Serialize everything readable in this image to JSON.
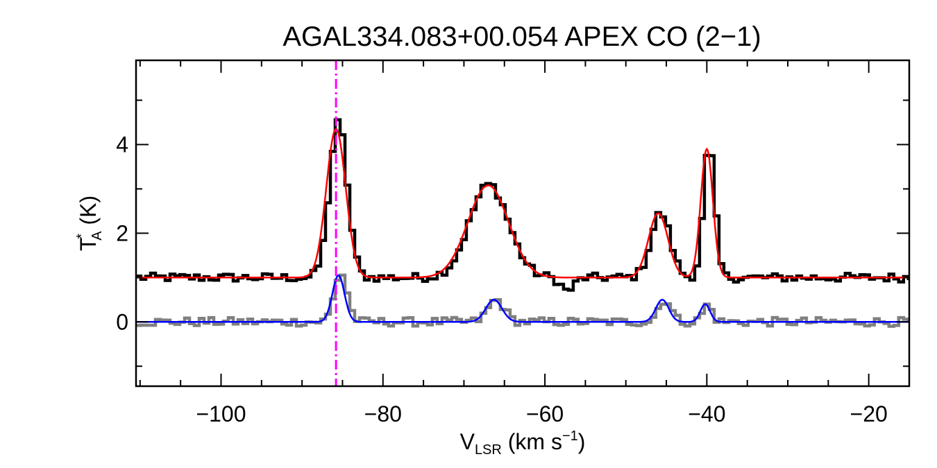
{
  "chart_data": {
    "type": "line",
    "title": "AGAL334.083+00.054  APEX CO (2−1)",
    "xlabel": {
      "main": "V",
      "sub": "LSR",
      "unit_before": " (km s",
      "sup": "−1",
      "unit_after": ")"
    },
    "ylabel": {
      "main": "T",
      "sup": "*",
      "sub": "A",
      "unit": " (K)"
    },
    "xlim": [
      -110.5,
      -15
    ],
    "ylim": [
      -1.45,
      5.9
    ],
    "x_major_ticks": [
      -100,
      -80,
      -60,
      -40,
      -20
    ],
    "x_tick_labels": [
      "−100",
      "−80",
      "−60",
      "−40",
      "−20"
    ],
    "y_major_ticks": [
      0,
      2,
      4
    ],
    "y_tick_labels": [
      "0",
      "2",
      "4"
    ],
    "x_minor_step": 5,
    "y_minor_step": 1,
    "reference_line": {
      "x": -85.8,
      "color": "#ff00ff",
      "style": "dash-dot"
    },
    "series": [
      {
        "role": "observed spectrum (offset +1 K)",
        "color": "#000000",
        "style": "histogram",
        "baseline": 1.0,
        "noise": 0.1,
        "x_start": -110.5,
        "x_end": -15,
        "step": 0.6,
        "components": [
          {
            "center": -85.8,
            "amp": 3.5,
            "sigma": 1.1
          },
          {
            "center": -67.2,
            "amp": 2.1,
            "sigma": 2.4
          },
          {
            "center": -46.0,
            "amp": 1.45,
            "sigma": 1.2
          },
          {
            "center": -40.0,
            "amp": 2.95,
            "sigma": 0.7
          }
        ],
        "dips": [
          {
            "center": -57.5,
            "amp": -0.3,
            "sigma": 0.8
          }
        ]
      },
      {
        "role": "fit to observed spectrum",
        "color": "#ff0000",
        "style": "line",
        "baseline": 1.0,
        "components": [
          {
            "center": -85.8,
            "amp": 3.35,
            "sigma": 1.2
          },
          {
            "center": -67.0,
            "amp": 2.08,
            "sigma": 2.5
          },
          {
            "center": -46.0,
            "amp": 1.45,
            "sigma": 1.2
          },
          {
            "center": -40.0,
            "amp": 2.9,
            "sigma": 0.75
          }
        ]
      },
      {
        "role": "secondary spectrum",
        "color": "#808080",
        "style": "histogram",
        "baseline": 0.0,
        "noise": 0.1,
        "x_start": -110.5,
        "x_end": -15,
        "step": 0.6,
        "components": [
          {
            "center": -85.5,
            "amp": 1.1,
            "sigma": 0.8
          },
          {
            "center": -66.3,
            "amp": 0.5,
            "sigma": 1.0
          },
          {
            "center": -45.5,
            "amp": 0.5,
            "sigma": 0.8
          },
          {
            "center": -40.2,
            "amp": 0.38,
            "sigma": 0.6
          }
        ]
      },
      {
        "role": "fit to secondary spectrum",
        "color": "#0000ff",
        "style": "line",
        "baseline": 0.0,
        "components": [
          {
            "center": -85.5,
            "amp": 1.05,
            "sigma": 0.75
          },
          {
            "center": -66.3,
            "amp": 0.5,
            "sigma": 1.0
          },
          {
            "center": -45.5,
            "amp": 0.5,
            "sigma": 0.8
          },
          {
            "center": -40.2,
            "amp": 0.4,
            "sigma": 0.6
          }
        ]
      }
    ]
  }
}
